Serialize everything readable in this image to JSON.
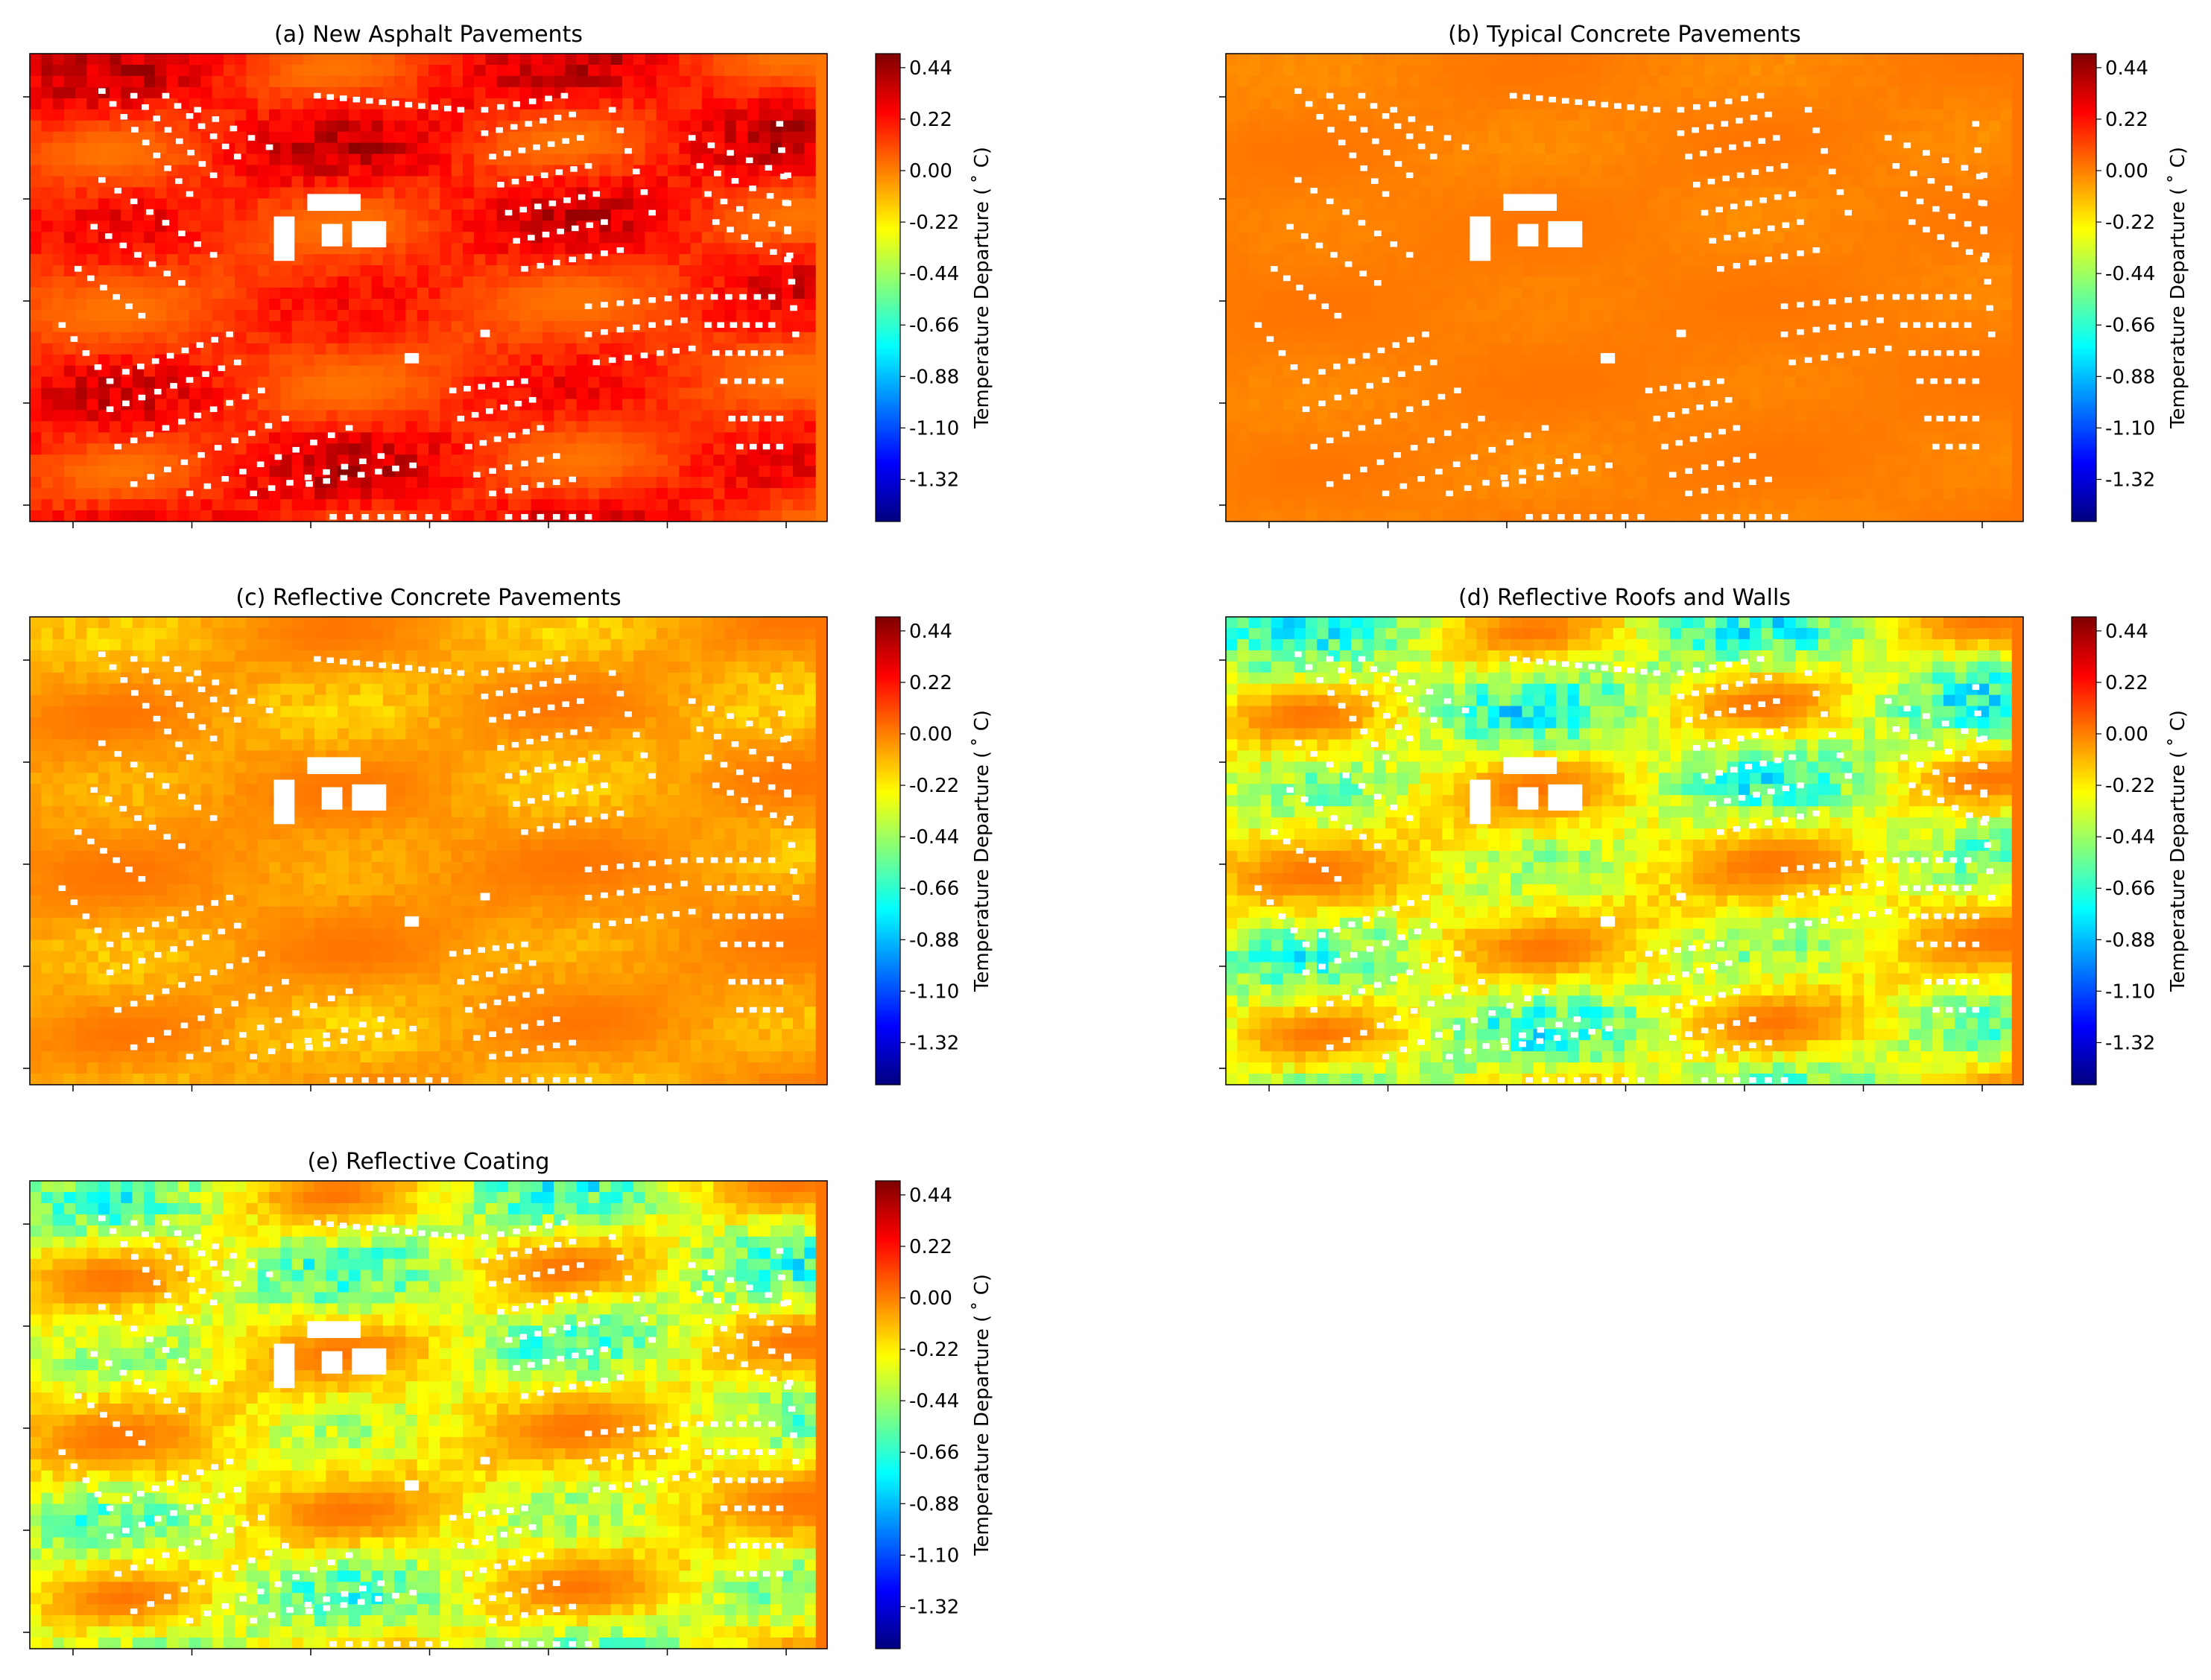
{
  "figure": {
    "colors": {
      "colormap": "jet",
      "jet_stops": [
        "#00007f",
        "#0000ff",
        "#007fff",
        "#00ffff",
        "#7fff7f",
        "#ffff00",
        "#ff7f00",
        "#ff0000",
        "#7f0000"
      ],
      "building": "#ffffff",
      "axis": "#000000"
    },
    "panel_order": [
      "a",
      "b",
      "c",
      "d",
      "e"
    ]
  },
  "chart_data": [
    {
      "type": "heatmap",
      "id": "a",
      "title": "(a) New Asphalt Pavements",
      "xlabel": "",
      "ylabel": "",
      "colorbar": {
        "label": "Temperature Departure ($^\\circ$C)",
        "label_display": "Temperature Departure ( ˚ C)",
        "ticks": [
          "0.44",
          "0.22",
          "0.00",
          "-0.22",
          "-0.44",
          "-0.66",
          "-0.88",
          "-1.10",
          "-1.32"
        ],
        "range": [
          -1.5,
          0.5
        ],
        "colormap": "jet"
      },
      "field": {
        "background_value": 0.02,
        "range_approx": [
          -0.05,
          0.45
        ],
        "pattern": "warm streaks along building rows"
      },
      "grid": false
    },
    {
      "type": "heatmap",
      "id": "b",
      "title": "(b) Typical Concrete Pavements",
      "xlabel": "",
      "ylabel": "",
      "colorbar": {
        "label": "Temperature Departure ($^\\circ$C)",
        "label_display": "Temperature Departure ( ˚ C)",
        "ticks": [
          "0.44",
          "0.22",
          "0.00",
          "-0.22",
          "-0.44",
          "-0.66",
          "-0.88",
          "-1.10",
          "-1.32"
        ],
        "range": [
          -1.5,
          0.5
        ],
        "colormap": "jet"
      },
      "field": {
        "background_value": 0.02,
        "range_approx": [
          -0.05,
          0.05
        ],
        "pattern": "nearly uniform"
      },
      "grid": false
    },
    {
      "type": "heatmap",
      "id": "c",
      "title": "(c) Reflective Concrete Pavements",
      "xlabel": "",
      "ylabel": "",
      "colorbar": {
        "label": "Temperature Departure ($^\\circ$C)",
        "label_display": "Temperature Departure ( ˚ C)",
        "ticks": [
          "0.44",
          "0.22",
          "0.00",
          "-0.22",
          "-0.44",
          "-0.66",
          "-0.88",
          "-1.10",
          "-1.32"
        ],
        "range": [
          -1.5,
          0.5
        ],
        "colormap": "jet"
      },
      "field": {
        "background_value": 0.02,
        "range_approx": [
          -0.25,
          0.05
        ],
        "pattern": "slight cooling streaks"
      },
      "grid": false
    },
    {
      "type": "heatmap",
      "id": "d",
      "title": "(d) Reflective Roofs and Walls",
      "xlabel": "",
      "ylabel": "",
      "colorbar": {
        "label": "Temperature Departure ($^\\circ$C)",
        "label_display": "Temperature Departure ( ˚ C)",
        "ticks": [
          "0.44",
          "0.22",
          "0.00",
          "-0.22",
          "-0.44",
          "-0.66",
          "-0.88",
          "-1.10",
          "-1.32"
        ],
        "range": [
          -1.5,
          0.5
        ],
        "colormap": "jet"
      },
      "field": {
        "background_value": 0.02,
        "range_approx": [
          -1.1,
          0.05
        ],
        "pattern": "strong cooling near buildings"
      },
      "grid": false
    },
    {
      "type": "heatmap",
      "id": "e",
      "title": "(e) Reflective Coating",
      "xlabel": "",
      "ylabel": "",
      "colorbar": {
        "label": "Temperature Departure ($^\\circ$C)",
        "label_display": "Temperature Departure ( ˚ C)",
        "ticks": [
          "0.44",
          "0.22",
          "0.00",
          "-0.22",
          "-0.44",
          "-0.66",
          "-0.88",
          "-1.10",
          "-1.32"
        ],
        "range": [
          -1.5,
          0.5
        ],
        "colormap": "jet"
      },
      "field": {
        "background_value": 0.02,
        "range_approx": [
          -1.0,
          0.05
        ],
        "pattern": "widespread cooling"
      },
      "grid": false
    }
  ]
}
